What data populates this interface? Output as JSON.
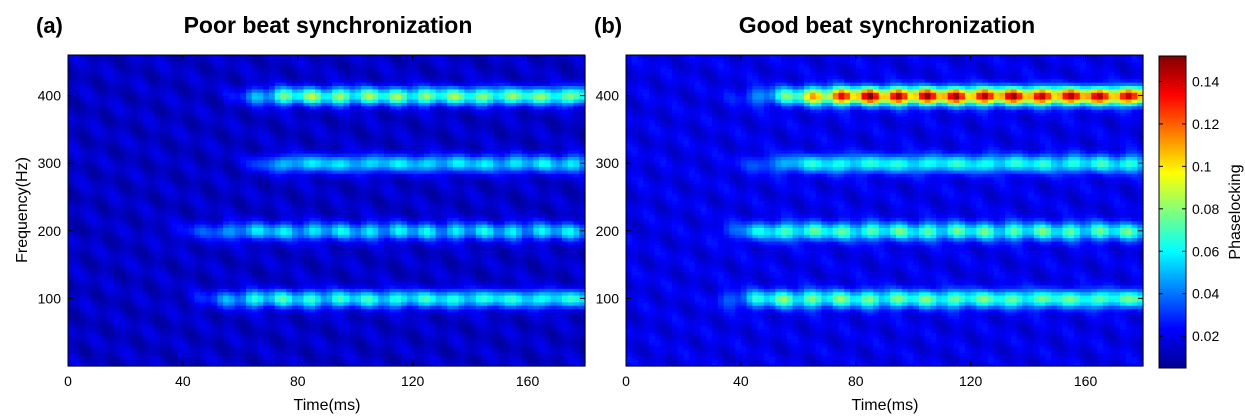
{
  "chart_data": [
    {
      "type": "heatmap",
      "panel_label": "(a)",
      "title": "Poor beat synchronization",
      "xlabel": "Time(ms)",
      "ylabel": "Frequency(Hz)",
      "xlim": [
        0,
        180
      ],
      "ylim": [
        0,
        460
      ],
      "xticks": [
        "0",
        "40",
        "80",
        "120",
        "160"
      ],
      "yticks": [
        "100",
        "200",
        "300",
        "400"
      ],
      "x_tick_values": [
        0,
        40,
        80,
        120,
        160
      ],
      "y_tick_values": [
        100,
        200,
        300,
        400
      ],
      "bands": [
        {
          "freq": 100,
          "onset_ms": 35,
          "plateau_ms": 70,
          "peak": 0.07
        },
        {
          "freq": 200,
          "onset_ms": 25,
          "plateau_ms": 70,
          "peak": 0.06
        },
        {
          "freq": 300,
          "onset_ms": 55,
          "plateau_ms": 80,
          "peak": 0.062
        },
        {
          "freq": 400,
          "onset_ms": 50,
          "plateau_ms": 80,
          "peak": 0.085
        }
      ],
      "background": 0.015
    },
    {
      "type": "heatmap",
      "panel_label": "(b)",
      "title": "Good beat synchronization",
      "xlabel": "Time(ms)",
      "ylabel": "",
      "xlim": [
        0,
        180
      ],
      "ylim": [
        0,
        460
      ],
      "xticks": [
        "0",
        "40",
        "80",
        "120",
        "160"
      ],
      "yticks": [
        "100",
        "200",
        "300",
        "400"
      ],
      "x_tick_values": [
        0,
        40,
        80,
        120,
        160
      ],
      "y_tick_values": [
        100,
        200,
        300,
        400
      ],
      "bands": [
        {
          "freq": 100,
          "onset_ms": 25,
          "plateau_ms": 55,
          "peak": 0.08
        },
        {
          "freq": 200,
          "onset_ms": 25,
          "plateau_ms": 55,
          "peak": 0.075
        },
        {
          "freq": 300,
          "onset_ms": 30,
          "plateau_ms": 70,
          "peak": 0.07
        },
        {
          "freq": 400,
          "onset_ms": 30,
          "plateau_ms": 85,
          "peak": 0.15
        }
      ],
      "background": 0.02
    }
  ],
  "colorbar": {
    "label": "Phaselocking",
    "range": [
      0.005,
      0.152
    ],
    "ticks": [
      "0.02",
      "0.04",
      "0.06",
      "0.08",
      "0.1",
      "0.12",
      "0.14"
    ],
    "tick_values": [
      0.02,
      0.04,
      0.06,
      0.08,
      0.1,
      0.12,
      0.14
    ],
    "colormap": "jet"
  }
}
